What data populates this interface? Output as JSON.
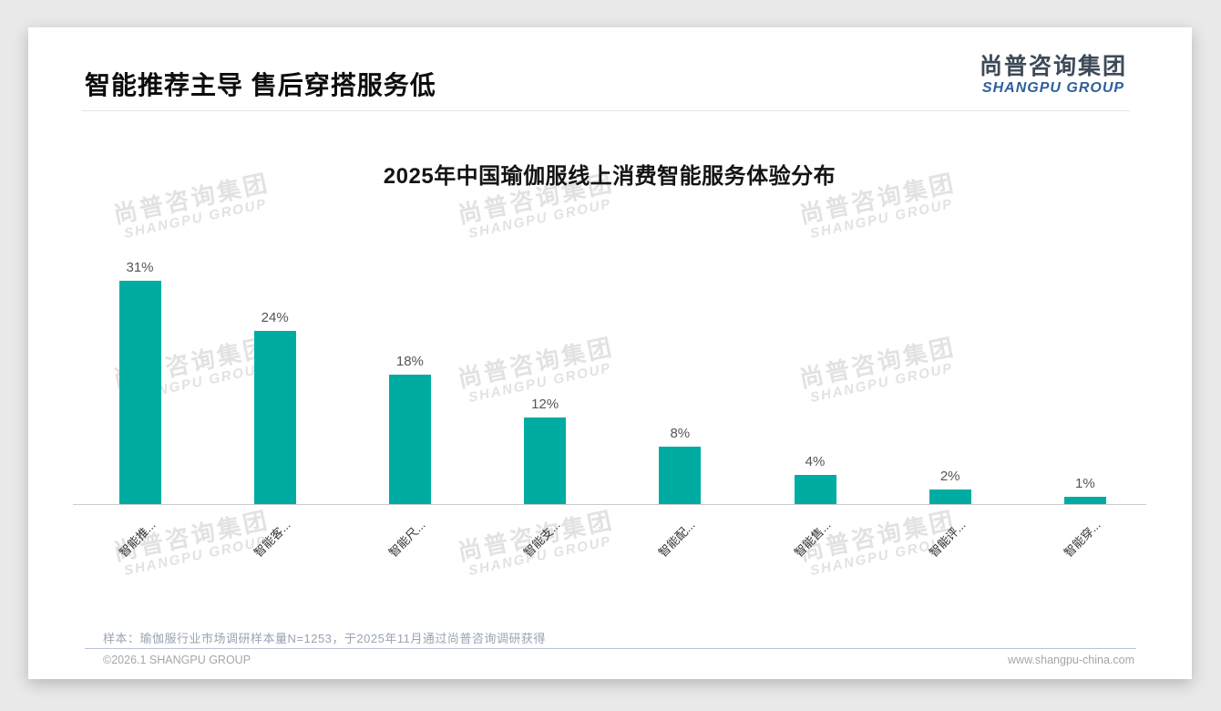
{
  "page": {
    "title": "智能推荐主导 售后穿搭服务低",
    "logo": {
      "cn": "尚普咨询集团",
      "en": "SHANGPU GROUP"
    },
    "watermark": {
      "cn": "尚普咨询集团",
      "en": "SHANGPU GROUP"
    },
    "note": "样本：瑜伽服行业市场调研样本量N=1253，于2025年11月通过尚普咨询调研获得",
    "footer": {
      "left": "©2026.1 SHANGPU GROUP",
      "right": "www.shangpu-china.com"
    }
  },
  "chart_data": {
    "type": "bar",
    "title": "2025年中国瑜伽服线上消费智能服务体验分布",
    "categories": [
      "智能推...",
      "智能客...",
      "智能尺...",
      "智能支...",
      "智能配...",
      "智能售...",
      "智能评...",
      "智能穿..."
    ],
    "values": [
      31,
      24,
      18,
      12,
      8,
      4,
      2,
      1
    ],
    "value_labels": [
      "31%",
      "24%",
      "18%",
      "12%",
      "8%",
      "4%",
      "2%",
      "1%"
    ],
    "unit": "%",
    "bar_color": "#00ACA2",
    "value_label_color": "#555555",
    "tick_label_color": "#333333",
    "axis_color": "#cccccc",
    "ylim": [
      0,
      35
    ],
    "grid": false,
    "legend": null,
    "xlabel": "",
    "ylabel": "",
    "tick_label_rotation": -45
  }
}
